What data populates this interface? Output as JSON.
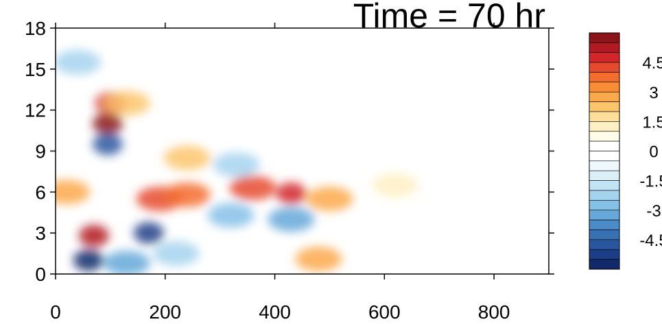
{
  "chart_data": {
    "type": "heatmap",
    "title": "Time = 70 hr",
    "xlabel": "",
    "ylabel": "",
    "xlim": [
      0,
      900
    ],
    "ylim": [
      0,
      18
    ],
    "x_ticks": [
      0,
      200,
      400,
      600,
      800
    ],
    "y_ticks": [
      0,
      3,
      6,
      9,
      12,
      15,
      18
    ],
    "x_tick_labels": [
      "0",
      "200",
      "400",
      "600",
      "800"
    ],
    "y_tick_labels": [
      "0",
      "3",
      "6",
      "9",
      "12",
      "15",
      "18"
    ],
    "colorbar": {
      "range": [
        -6,
        6
      ],
      "interval": 0.5,
      "tick_labels": [
        "4.5",
        "3",
        "1.5",
        "0",
        "-1.5",
        "-3",
        "-4.5"
      ],
      "tick_values": [
        4.5,
        3,
        1.5,
        0,
        -1.5,
        -3,
        -4.5
      ],
      "colors": [
        "#8b1419",
        "#b01a20",
        "#d2262a",
        "#e64a2e",
        "#f36d2f",
        "#f88d36",
        "#fba94a",
        "#fcc56c",
        "#fddf9a",
        "#fef0c4",
        "#fffbe8",
        "#ffffff",
        "#ffffff",
        "#eef8fd",
        "#dbeff9",
        "#c2e3f4",
        "#a4d3ee",
        "#85c1e7",
        "#65a8d9",
        "#4b8cc8",
        "#3771b4",
        "#28579f",
        "#1c3e86",
        "#12296a"
      ]
    },
    "features": [
      {
        "x": 95,
        "y": 11,
        "value": 5.5
      },
      {
        "x": 70,
        "y": 2.8,
        "value": 5
      },
      {
        "x": 60,
        "y": 1.0,
        "value": -5.5
      },
      {
        "x": 170,
        "y": 3.0,
        "value": -5
      },
      {
        "x": 95,
        "y": 9.5,
        "value": -4.5
      },
      {
        "x": 100,
        "y": 12.5,
        "value": 4.5
      },
      {
        "x": 190,
        "y": 5.5,
        "value": 4
      },
      {
        "x": 240,
        "y": 5.8,
        "value": 3.5
      },
      {
        "x": 430,
        "y": 5.9,
        "value": 4.5
      },
      {
        "x": 360,
        "y": 6.3,
        "value": 4
      },
      {
        "x": 500,
        "y": 5.5,
        "value": 2.5
      },
      {
        "x": 620,
        "y": 6.5,
        "value": 1.0
      },
      {
        "x": 430,
        "y": 4.0,
        "value": -3
      },
      {
        "x": 320,
        "y": 4.3,
        "value": -2.5
      },
      {
        "x": 330,
        "y": 8.0,
        "value": -2
      },
      {
        "x": 480,
        "y": 1.1,
        "value": 2.5
      },
      {
        "x": 20,
        "y": 6.0,
        "value": 2.5
      },
      {
        "x": 40,
        "y": 15.5,
        "value": -2
      },
      {
        "x": 130,
        "y": 12.5,
        "value": 2.0
      },
      {
        "x": 240,
        "y": 8.5,
        "value": 2.0
      },
      {
        "x": 220,
        "y": 1.5,
        "value": -2
      },
      {
        "x": 130,
        "y": 0.8,
        "value": -3
      }
    ]
  }
}
